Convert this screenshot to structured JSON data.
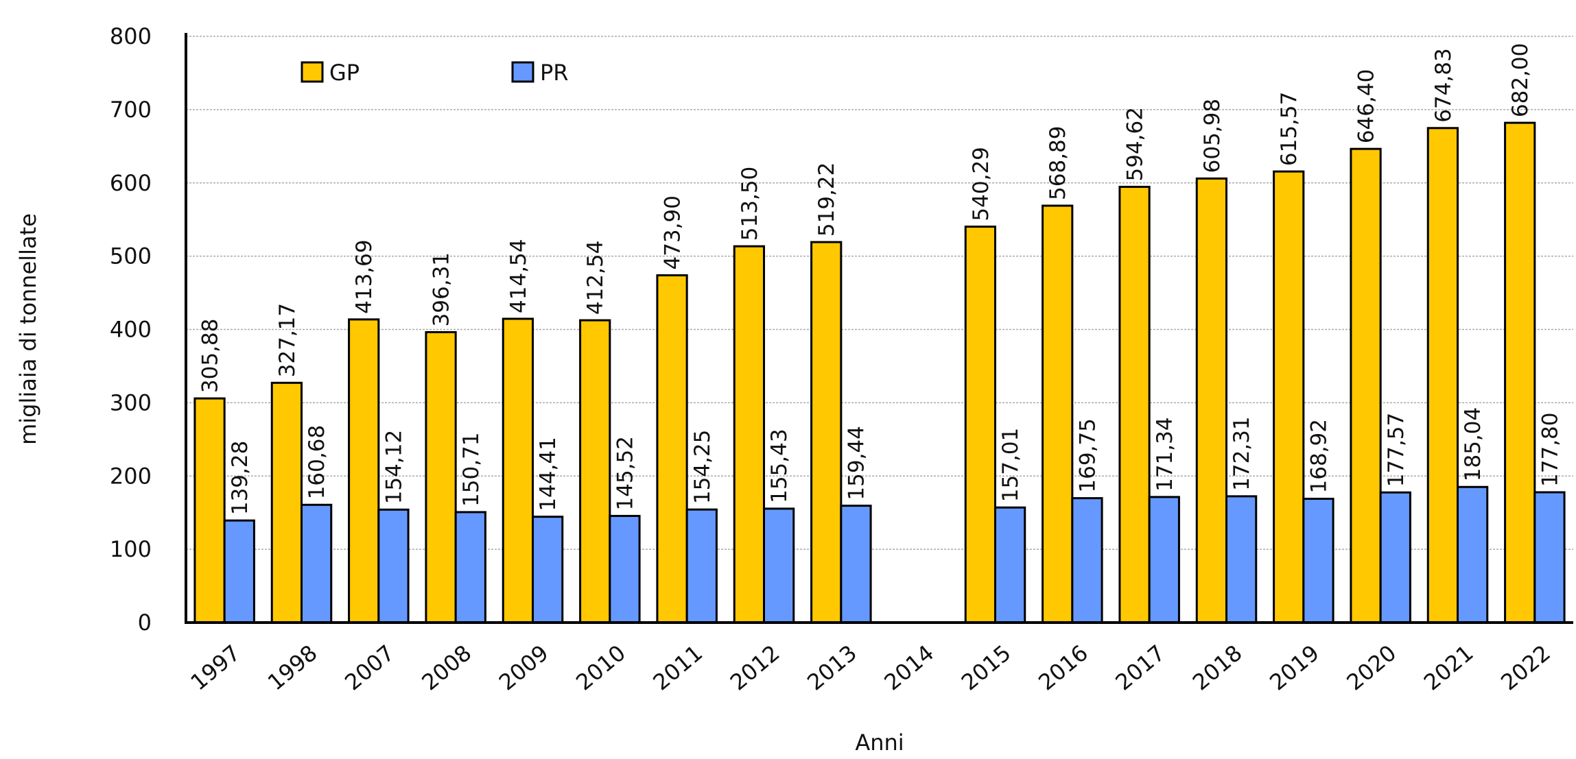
{
  "chart_data": {
    "type": "bar",
    "y_label": "migliaia di tonnellate",
    "x_label": "Anni",
    "categories": [
      "1997",
      "1998",
      "2007",
      "2008",
      "2009",
      "2010",
      "2011",
      "2012",
      "2013",
      "2014",
      "2015",
      "2016",
      "2017",
      "2018",
      "2019",
      "2020",
      "2021",
      "2022"
    ],
    "series": [
      {
        "name": "GP",
        "color": "#ffc800",
        "values": [
          305.88,
          327.17,
          413.69,
          396.31,
          414.54,
          412.54,
          473.9,
          513.5,
          519.22,
          null,
          540.29,
          568.89,
          594.62,
          605.98,
          615.57,
          646.4,
          674.83,
          682.0
        ],
        "value_labels": [
          "305,88",
          "327,17",
          "413,69",
          "396,31",
          "414,54",
          "412,54",
          "473,90",
          "513,50",
          "519,22",
          null,
          "540,29",
          "568,89",
          "594,62",
          "605,98",
          "615,57",
          "646,40",
          "674,83",
          "682,00"
        ]
      },
      {
        "name": "PR",
        "color": "#6699ff",
        "values": [
          139.28,
          160.68,
          154.12,
          150.71,
          144.41,
          145.52,
          154.25,
          155.43,
          159.44,
          null,
          157.01,
          169.75,
          171.34,
          172.31,
          168.92,
          177.57,
          185.04,
          177.8
        ],
        "value_labels": [
          "139,28",
          "160,68",
          "154,12",
          "150,71",
          "144,41",
          "145,52",
          "154,25",
          "155,43",
          "159,44",
          null,
          "157,01",
          "169,75",
          "171,34",
          "172,31",
          "168,92",
          "177,57",
          "185,04",
          "177,80"
        ]
      }
    ],
    "ylim": [
      0,
      800
    ],
    "yticks": [
      0,
      100,
      200,
      300,
      400,
      500,
      600,
      700,
      800
    ],
    "grid": true,
    "legend": "top-left"
  }
}
